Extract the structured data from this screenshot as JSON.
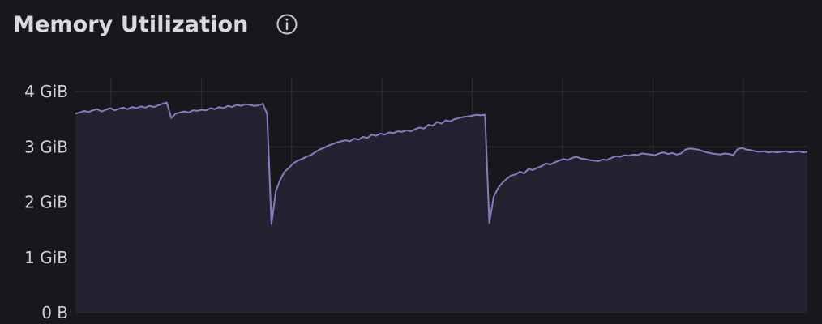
{
  "panel": {
    "title": "Memory Utilization",
    "info_icon": "info-circle-icon"
  },
  "colors": {
    "background": "#18181c",
    "line": "#8b79c2",
    "fill": "#222230",
    "grid": "#2f3038",
    "text": "#d0d1d8"
  },
  "chart_data": {
    "type": "area",
    "title": "Memory Utilization",
    "xlabel": "",
    "ylabel": "",
    "unit": "GiB",
    "ylim": [
      0,
      4.35
    ],
    "y_ticks": [
      {
        "value": 4,
        "label": "4 GiB"
      },
      {
        "value": 3,
        "label": "3 GiB"
      },
      {
        "value": 2,
        "label": "2 GiB"
      },
      {
        "value": 1,
        "label": "1 GiB"
      },
      {
        "value": 0,
        "label": "0 B"
      }
    ],
    "x_gridlines": 8,
    "grid": true,
    "legend": "none",
    "series": [
      {
        "values": [
          3.6,
          3.62,
          3.65,
          3.63,
          3.66,
          3.68,
          3.64,
          3.67,
          3.7,
          3.66,
          3.69,
          3.71,
          3.68,
          3.72,
          3.7,
          3.73,
          3.71,
          3.74,
          3.72,
          3.75,
          3.78,
          3.8,
          3.52,
          3.6,
          3.62,
          3.64,
          3.62,
          3.66,
          3.65,
          3.67,
          3.66,
          3.7,
          3.68,
          3.72,
          3.7,
          3.74,
          3.72,
          3.76,
          3.74,
          3.77,
          3.76,
          3.74,
          3.75,
          3.78,
          3.6,
          1.6,
          2.2,
          2.4,
          2.55,
          2.62,
          2.7,
          2.75,
          2.78,
          2.82,
          2.85,
          2.9,
          2.95,
          2.98,
          3.02,
          3.05,
          3.08,
          3.1,
          3.12,
          3.1,
          3.15,
          3.13,
          3.18,
          3.16,
          3.22,
          3.2,
          3.24,
          3.22,
          3.26,
          3.25,
          3.28,
          3.27,
          3.3,
          3.28,
          3.32,
          3.35,
          3.33,
          3.4,
          3.38,
          3.45,
          3.42,
          3.48,
          3.46,
          3.5,
          3.52,
          3.54,
          3.55,
          3.56,
          3.58,
          3.57,
          3.58,
          1.62,
          2.1,
          2.25,
          2.35,
          2.42,
          2.48,
          2.5,
          2.55,
          2.52,
          2.6,
          2.58,
          2.62,
          2.65,
          2.7,
          2.68,
          2.72,
          2.75,
          2.78,
          2.76,
          2.8,
          2.82,
          2.79,
          2.78,
          2.76,
          2.75,
          2.74,
          2.77,
          2.76,
          2.8,
          2.83,
          2.82,
          2.85,
          2.84,
          2.86,
          2.85,
          2.88,
          2.87,
          2.86,
          2.85,
          2.88,
          2.9,
          2.87,
          2.89,
          2.86,
          2.88,
          2.95,
          2.97,
          2.96,
          2.95,
          2.92,
          2.9,
          2.88,
          2.87,
          2.86,
          2.88,
          2.87,
          2.85,
          2.96,
          2.98,
          2.95,
          2.94,
          2.92,
          2.91,
          2.92,
          2.9,
          2.91,
          2.9,
          2.91,
          2.92,
          2.9,
          2.91,
          2.92,
          2.9,
          2.91
        ]
      }
    ]
  }
}
